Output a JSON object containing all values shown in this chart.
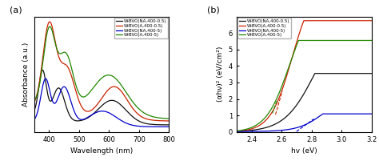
{
  "panel_a": {
    "title": "(a)",
    "xlabel": "Wavelength (nm)",
    "ylabel": "Absorbance (a.u.)",
    "xlim": [
      350,
      800
    ],
    "xticks": [
      400,
      500,
      600,
      700,
      800
    ],
    "legend": [
      "W-BVO(NA,400-0.5)",
      "W-BVO(A,400-0.5)",
      "W-BVO(NA,400-5)",
      "W-BVO(A,400-5)"
    ],
    "colors": [
      "#111111",
      "#cc2200",
      "#0000cc",
      "#228800"
    ]
  },
  "panel_b": {
    "title": "(b)",
    "xlabel": "hv (eV)",
    "ylabel": "(αhν)² (eV/cm²)",
    "xlim": [
      2.3,
      3.2
    ],
    "ylim": [
      0,
      7
    ],
    "yticks": [
      0,
      1,
      2,
      3,
      4,
      5,
      6
    ],
    "xticks": [
      2.4,
      2.6,
      2.8,
      3.0,
      3.2
    ],
    "legend": [
      "W-BVO(NA,400-0.5)",
      "W-BVO(A,400-0.5)",
      "W-BVO(NA,400-5)",
      "W-BVO(A,400-5)"
    ],
    "colors": [
      "#111111",
      "#cc2200",
      "#0000cc",
      "#228800"
    ]
  },
  "background_color": "#ffffff"
}
